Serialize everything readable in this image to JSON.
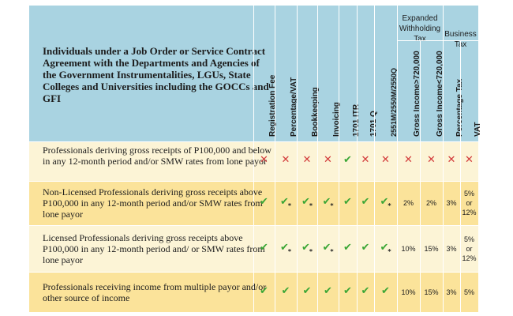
{
  "header": {
    "title": "Individuals under a Job Order or Service Contract  Agreement with the Departments and Agencies of the Government Instrumentalities, LGUs, State Colleges and Universities including the GOCCs and GFI",
    "group_ewt": "Expanded Withholding Tax",
    "group_bt": "Business Tax",
    "columns": [
      "Registration Fee",
      "Percentage/VAT",
      "Bookkeeping",
      "Invoicing",
      "1701 ITR",
      "1701 Q",
      "2551M/2550M/2550Q",
      "Gross Income>720,000",
      "Gross Income<720,000",
      "Percentage Tax",
      "VAT"
    ]
  },
  "rows": [
    {
      "label": "Professionals deriving gross receipts of P100,000 and below in any 12-month period and/or SMW rates from lone payor",
      "cells": [
        "x",
        "x",
        "x",
        "x",
        "check",
        "x",
        "x",
        "x",
        "x",
        "x",
        "x"
      ]
    },
    {
      "label": "Non-Licensed Professionals deriving gross receipts above P100,000 in any 12-month period and/or SMW rates from lone payor",
      "cells": [
        "check",
        "check*",
        "check*",
        "check*",
        "check",
        "check",
        "check*",
        "2%",
        "2%",
        "3%",
        "5% or 12%"
      ]
    },
    {
      "label": "Licensed Professionals deriving gross receipts above P100,000 in any 12-month period and/ or SMW rates from lone payor",
      "cells": [
        "check",
        "check*",
        "check*",
        "check*",
        "check",
        "check",
        "check*",
        "10%",
        "15%",
        "3%",
        "5% or 12%"
      ]
    },
    {
      "label": "Professionals receiving income from multiple payor and/or other source of income",
      "cells": [
        "check",
        "check",
        "check",
        "check",
        "check",
        "check",
        "check",
        "10%",
        "15%",
        "3%",
        "5%"
      ]
    }
  ],
  "colors": {
    "header": "#a9d3e1",
    "row_light": "#fcf4d6",
    "row_dark": "#fbe39a",
    "check": "#3aa635",
    "cross": "#d23a3a"
  },
  "icons": {
    "check": "check-icon",
    "cross": "cross-icon",
    "asterisk": "asterisk-icon"
  }
}
